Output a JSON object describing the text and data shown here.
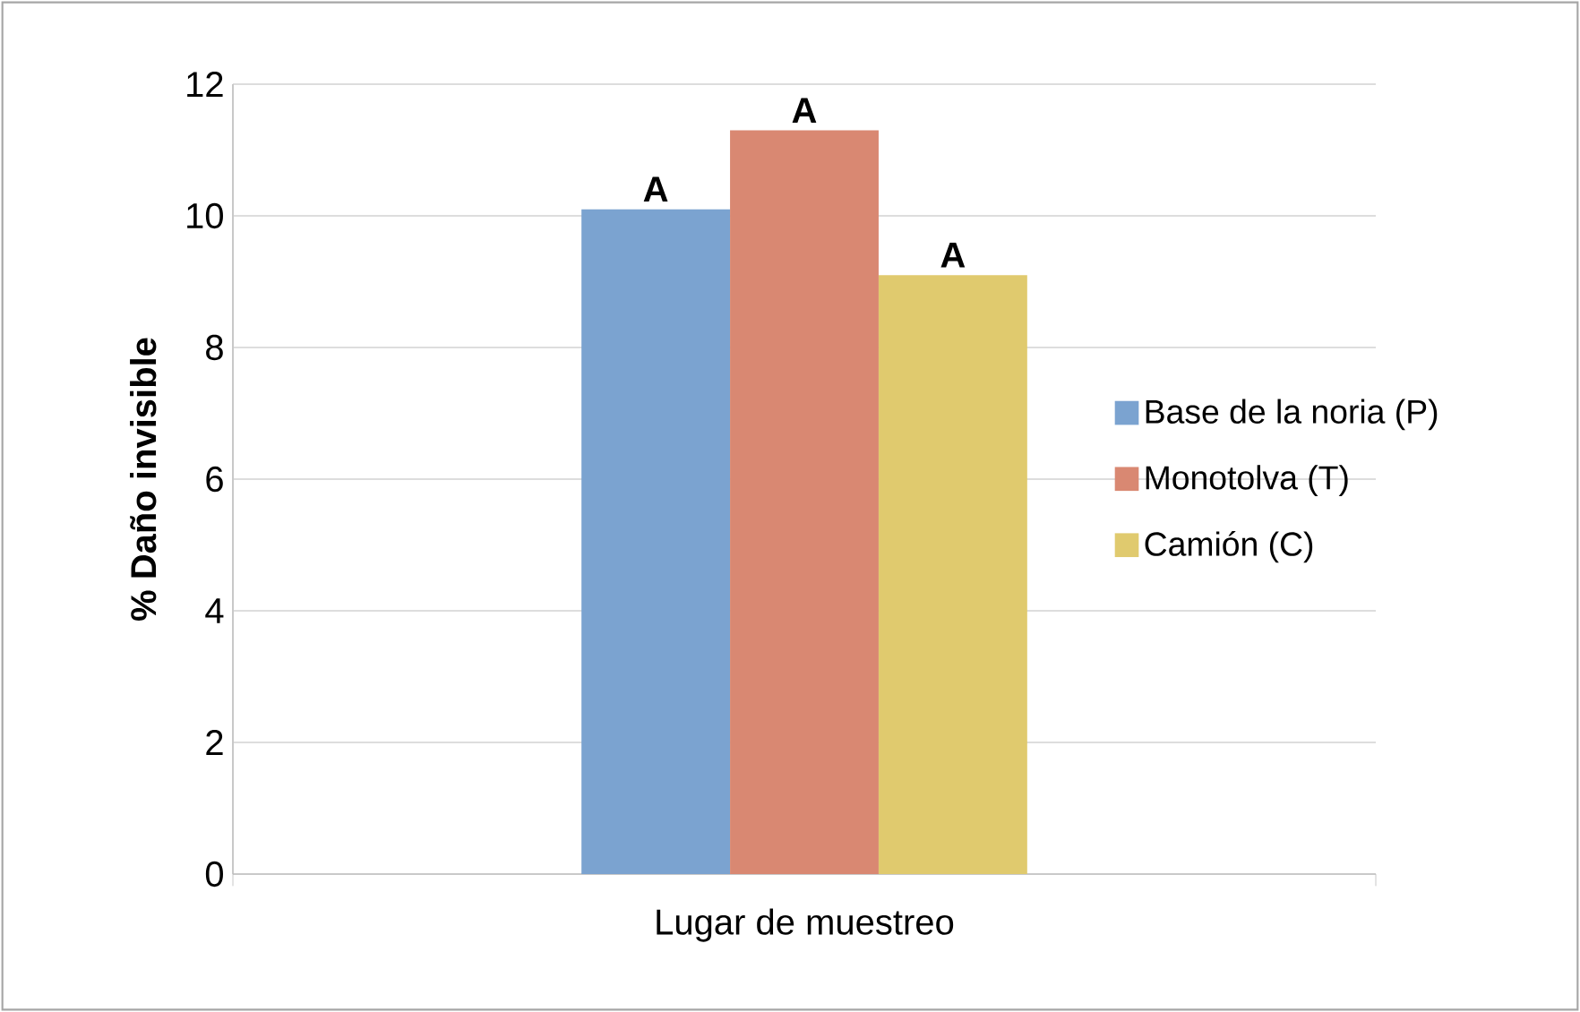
{
  "chart_data": {
    "type": "bar",
    "xlabel": "Lugar de muestreo",
    "ylabel": "% Daño invisible",
    "categories": [
      null
    ],
    "series": [
      {
        "name": "Base de la noria (P)",
        "color": "#7ba3d0",
        "values": [
          10.1
        ]
      },
      {
        "name": "Monotolva (T)",
        "color": "#d98872",
        "values": [
          11.3
        ]
      },
      {
        "name": "Camión (C)",
        "color": "#e0ca6e",
        "values": [
          9.1
        ]
      }
    ],
    "annotations": [
      {
        "text": "A",
        "y": 10.1
      },
      {
        "text": "A",
        "y": 11.3
      },
      {
        "text": "A",
        "y": 9.1
      }
    ],
    "ylim": [
      0,
      12
    ],
    "yticks": [
      0,
      2,
      4,
      6,
      8,
      10,
      12
    ],
    "grid": "y",
    "legend": "right"
  }
}
